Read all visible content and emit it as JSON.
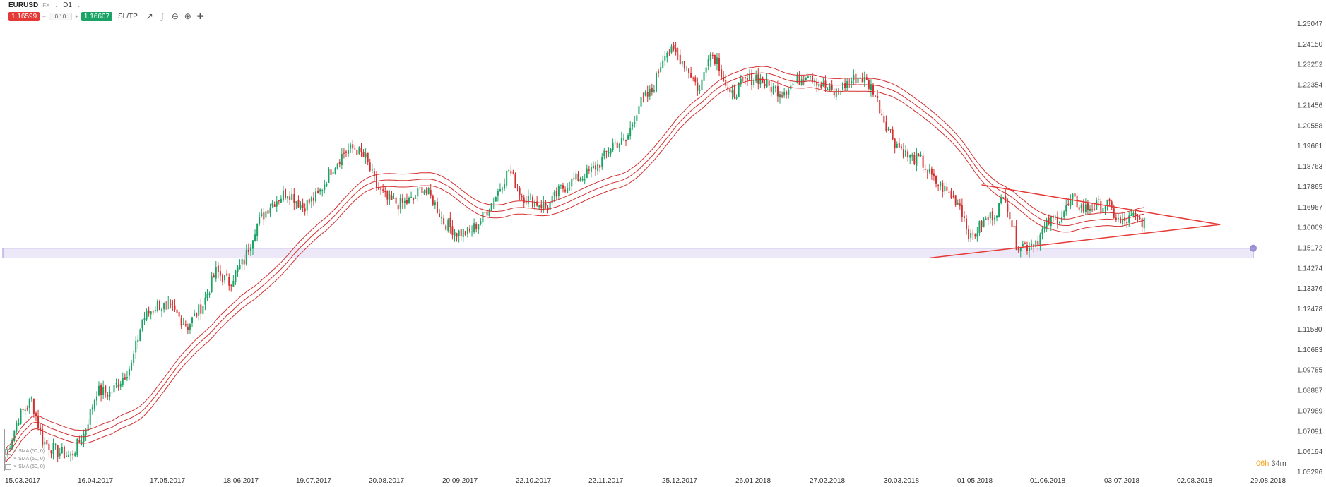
{
  "symbol": "EURUSD",
  "market": "FX",
  "timeframe": "D1",
  "sell_price": "1.16599",
  "volume": "0.10",
  "buy_price": "1.16607",
  "sltp_label": "SL/TP",
  "timer": {
    "hours": "06h",
    "minutes": "34m"
  },
  "indicators": [
    "SMA (50, 0)",
    "SMA (50, 0)",
    "SMA (50, 0)"
  ],
  "colors": {
    "up": "#1aa364",
    "down": "#d32f2f",
    "ma": "#d32f2f",
    "trend": "#e53935",
    "zone_fill": "#ebe6f7",
    "zone_border": "#9b8fd6",
    "timer": "#f5a623"
  },
  "chart_data": {
    "type": "candlestick",
    "title": "EURUSD D1",
    "ylim": [
      1.05296,
      1.2594
    ],
    "y_ticks": [
      "1.25047",
      "1.24150",
      "1.23252",
      "1.22354",
      "1.21456",
      "1.20558",
      "1.19661",
      "1.18763",
      "1.17865",
      "1.16967",
      "1.16069",
      "1.15172",
      "1.14274",
      "1.13376",
      "1.12478",
      "1.11580",
      "1.10683",
      "1.09785",
      "1.08887",
      "1.07989",
      "1.07091",
      "1.06194",
      "1.05296"
    ],
    "x_ticks": [
      "15.03.2017",
      "16.04.2017",
      "17.05.2017",
      "18.06.2017",
      "19.07.2017",
      "20.08.2017",
      "20.09.2017",
      "22.10.2017",
      "22.11.2017",
      "25.12.2017",
      "26.01.2018",
      "27.02.2018",
      "30.03.2018",
      "01.05.2018",
      "01.06.2018",
      "03.07.2018",
      "02.08.2018",
      "29.08.2018"
    ],
    "price_path": [
      [
        0,
        1.06
      ],
      [
        6,
        1.078
      ],
      [
        12,
        1.086
      ],
      [
        17,
        1.067
      ],
      [
        24,
        1.062
      ],
      [
        30,
        1.06
      ],
      [
        36,
        1.07
      ],
      [
        42,
        1.09
      ],
      [
        48,
        1.089
      ],
      [
        53,
        1.095
      ],
      [
        58,
        1.102
      ],
      [
        63,
        1.123
      ],
      [
        70,
        1.13
      ],
      [
        77,
        1.127
      ],
      [
        84,
        1.12
      ],
      [
        91,
        1.13
      ],
      [
        97,
        1.145
      ],
      [
        103,
        1.14
      ],
      [
        110,
        1.15
      ],
      [
        115,
        1.165
      ],
      [
        122,
        1.176
      ],
      [
        130,
        1.182
      ],
      [
        137,
        1.175
      ],
      [
        144,
        1.18
      ],
      [
        150,
        1.192
      ],
      [
        156,
        1.2
      ],
      [
        161,
        1.202
      ],
      [
        166,
        1.197
      ],
      [
        171,
        1.184
      ],
      [
        176,
        1.178
      ],
      [
        182,
        1.176
      ],
      [
        188,
        1.178
      ],
      [
        192,
        1.184
      ],
      [
        197,
        1.178
      ],
      [
        202,
        1.168
      ],
      [
        208,
        1.163
      ],
      [
        214,
        1.163
      ],
      [
        220,
        1.17
      ],
      [
        226,
        1.18
      ],
      [
        232,
        1.192
      ],
      [
        238,
        1.18
      ],
      [
        244,
        1.177
      ],
      [
        250,
        1.175
      ],
      [
        256,
        1.183
      ],
      [
        262,
        1.187
      ],
      [
        268,
        1.19
      ],
      [
        274,
        1.195
      ],
      [
        280,
        1.204
      ],
      [
        286,
        1.205
      ],
      [
        292,
        1.222
      ],
      [
        298,
        1.228
      ],
      [
        304,
        1.247
      ],
      [
        310,
        1.245
      ],
      [
        316,
        1.236
      ],
      [
        320,
        1.228
      ],
      [
        324,
        1.246
      ],
      [
        328,
        1.243
      ],
      [
        334,
        1.225
      ],
      [
        340,
        1.232
      ],
      [
        346,
        1.235
      ],
      [
        352,
        1.23
      ],
      [
        358,
        1.228
      ],
      [
        364,
        1.232
      ],
      [
        370,
        1.237
      ],
      [
        376,
        1.231
      ],
      [
        382,
        1.227
      ],
      [
        388,
        1.232
      ],
      [
        394,
        1.235
      ],
      [
        400,
        1.229
      ],
      [
        405,
        1.215
      ],
      [
        410,
        1.205
      ],
      [
        416,
        1.198
      ],
      [
        422,
        1.196
      ],
      [
        428,
        1.187
      ],
      [
        434,
        1.182
      ],
      [
        440,
        1.176
      ],
      [
        445,
        1.16
      ],
      [
        450,
        1.167
      ],
      [
        456,
        1.172
      ],
      [
        461,
        1.18
      ],
      [
        466,
        1.158
      ],
      [
        471,
        1.157
      ],
      [
        476,
        1.16
      ],
      [
        481,
        1.168
      ],
      [
        486,
        1.17
      ],
      [
        492,
        1.178
      ],
      [
        497,
        1.174
      ],
      [
        502,
        1.175
      ],
      [
        508,
        1.176
      ],
      [
        514,
        1.167
      ],
      [
        520,
        1.17
      ],
      [
        525,
        1.168
      ]
    ],
    "series": [
      {
        "name": "SMA (50, 0)",
        "offset": 0.003
      },
      {
        "name": "SMA (50, 0)",
        "offset": 0.0
      },
      {
        "name": "SMA (50, 0)",
        "offset": -0.003
      }
    ],
    "support_zone": [
      1.1513,
      1.1558
    ],
    "triangle": {
      "upper": [
        [
          450,
          1.185
        ],
        [
          560,
          1.1667
        ]
      ],
      "lower": [
        [
          426,
          1.1513
        ],
        [
          560,
          1.1667
        ]
      ]
    }
  }
}
